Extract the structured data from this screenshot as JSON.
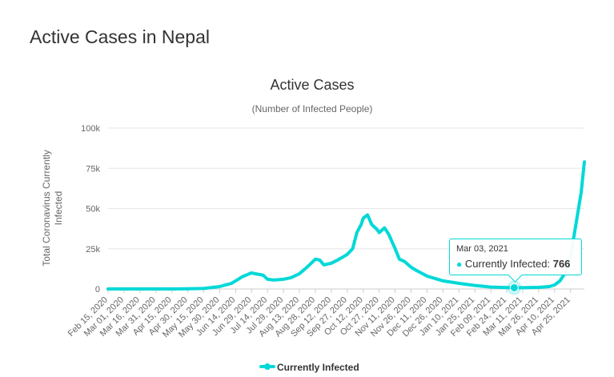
{
  "page": {
    "heading": "Active Cases in Nepal"
  },
  "chart_data": {
    "type": "line",
    "title": "Active Cases",
    "subtitle": "(Number of Infected People)",
    "xlabel": "",
    "ylabel": "Total Coronavirus Currently Infected",
    "ylim": [
      0,
      100000
    ],
    "y_ticks": [
      "0",
      "25k",
      "50k",
      "75k",
      "100k"
    ],
    "y_tick_values": [
      0,
      25000,
      50000,
      75000,
      100000
    ],
    "x_tick_labels": [
      "Feb 15, 2020",
      "Mar 01, 2020",
      "Mar 16, 2020",
      "Mar 31, 2020",
      "Apr 15, 2020",
      "Apr 30, 2020",
      "May 15, 2020",
      "May 30, 2020",
      "Jun 14, 2020",
      "Jun 29, 2020",
      "Jul 14, 2020",
      "Jul 29, 2020",
      "Aug 13, 2020",
      "Aug 28, 2020",
      "Sep 12, 2020",
      "Sep 27, 2020",
      "Oct 12, 2020",
      "Oct 27, 2020",
      "Nov 11, 2020",
      "Nov 26, 2020",
      "Dec 11, 2020",
      "Dec 26, 2020",
      "Jan 10, 2021",
      "Jan 25, 2021",
      "Feb 09, 2021",
      "Feb 24, 2021",
      "Mar 11, 2021",
      "Mar 26, 2021",
      "Apr 10, 2021",
      "Apr 25, 2021"
    ],
    "grid": true,
    "legend": "bottom",
    "series": [
      {
        "name": "Currently Infected",
        "color": "#00d8d8",
        "x": [
          "Feb 15, 2020",
          "Mar 01, 2020",
          "Mar 16, 2020",
          "Mar 31, 2020",
          "Apr 15, 2020",
          "Apr 30, 2020",
          "May 15, 2020",
          "May 30, 2020",
          "Jun 10, 2020",
          "Jun 14, 2020",
          "Jun 20, 2020",
          "Jun 29, 2020",
          "Jul 02, 2020",
          "Jul 10, 2020",
          "Jul 14, 2020",
          "Jul 20, 2020",
          "Jul 29, 2020",
          "Aug 05, 2020",
          "Aug 13, 2020",
          "Aug 20, 2020",
          "Aug 28, 2020",
          "Sep 01, 2020",
          "Sep 05, 2020",
          "Sep 12, 2020",
          "Sep 18, 2020",
          "Sep 22, 2020",
          "Sep 27, 2020",
          "Oct 02, 2020",
          "Oct 06, 2020",
          "Oct 10, 2020",
          "Oct 12, 2020",
          "Oct 16, 2020",
          "Oct 20, 2020",
          "Oct 25, 2020",
          "Oct 27, 2020",
          "Nov 01, 2020",
          "Nov 05, 2020",
          "Nov 11, 2020",
          "Nov 15, 2020",
          "Nov 20, 2020",
          "Nov 26, 2020",
          "Dec 01, 2020",
          "Dec 11, 2020",
          "Dec 26, 2020",
          "Jan 10, 2021",
          "Jan 25, 2021",
          "Feb 09, 2021",
          "Feb 24, 2021",
          "Mar 03, 2021",
          "Mar 11, 2021",
          "Mar 26, 2021",
          "Apr 05, 2021",
          "Apr 10, 2021",
          "Apr 15, 2021",
          "Apr 20, 2021",
          "Apr 25, 2021",
          "Apr 30, 2021",
          "May 05, 2021",
          "May 08, 2021"
        ],
        "values": [
          0,
          0,
          0,
          0,
          0,
          100,
          300,
          1500,
          3500,
          5000,
          7500,
          10000,
          9500,
          8500,
          6000,
          5500,
          6000,
          7000,
          9500,
          13500,
          18500,
          18000,
          15000,
          16000,
          18000,
          19500,
          21500,
          25000,
          35000,
          40000,
          44000,
          46000,
          40000,
          37000,
          35000,
          38000,
          34000,
          25000,
          18500,
          17000,
          13500,
          11500,
          8000,
          5000,
          3500,
          2200,
          1200,
          900,
          766,
          800,
          1000,
          1500,
          2500,
          5000,
          10000,
          20000,
          40000,
          60000,
          79000
        ]
      }
    ],
    "tooltip": {
      "date": "Mar 03, 2021",
      "series": "Currently Infected",
      "value": "766"
    }
  }
}
